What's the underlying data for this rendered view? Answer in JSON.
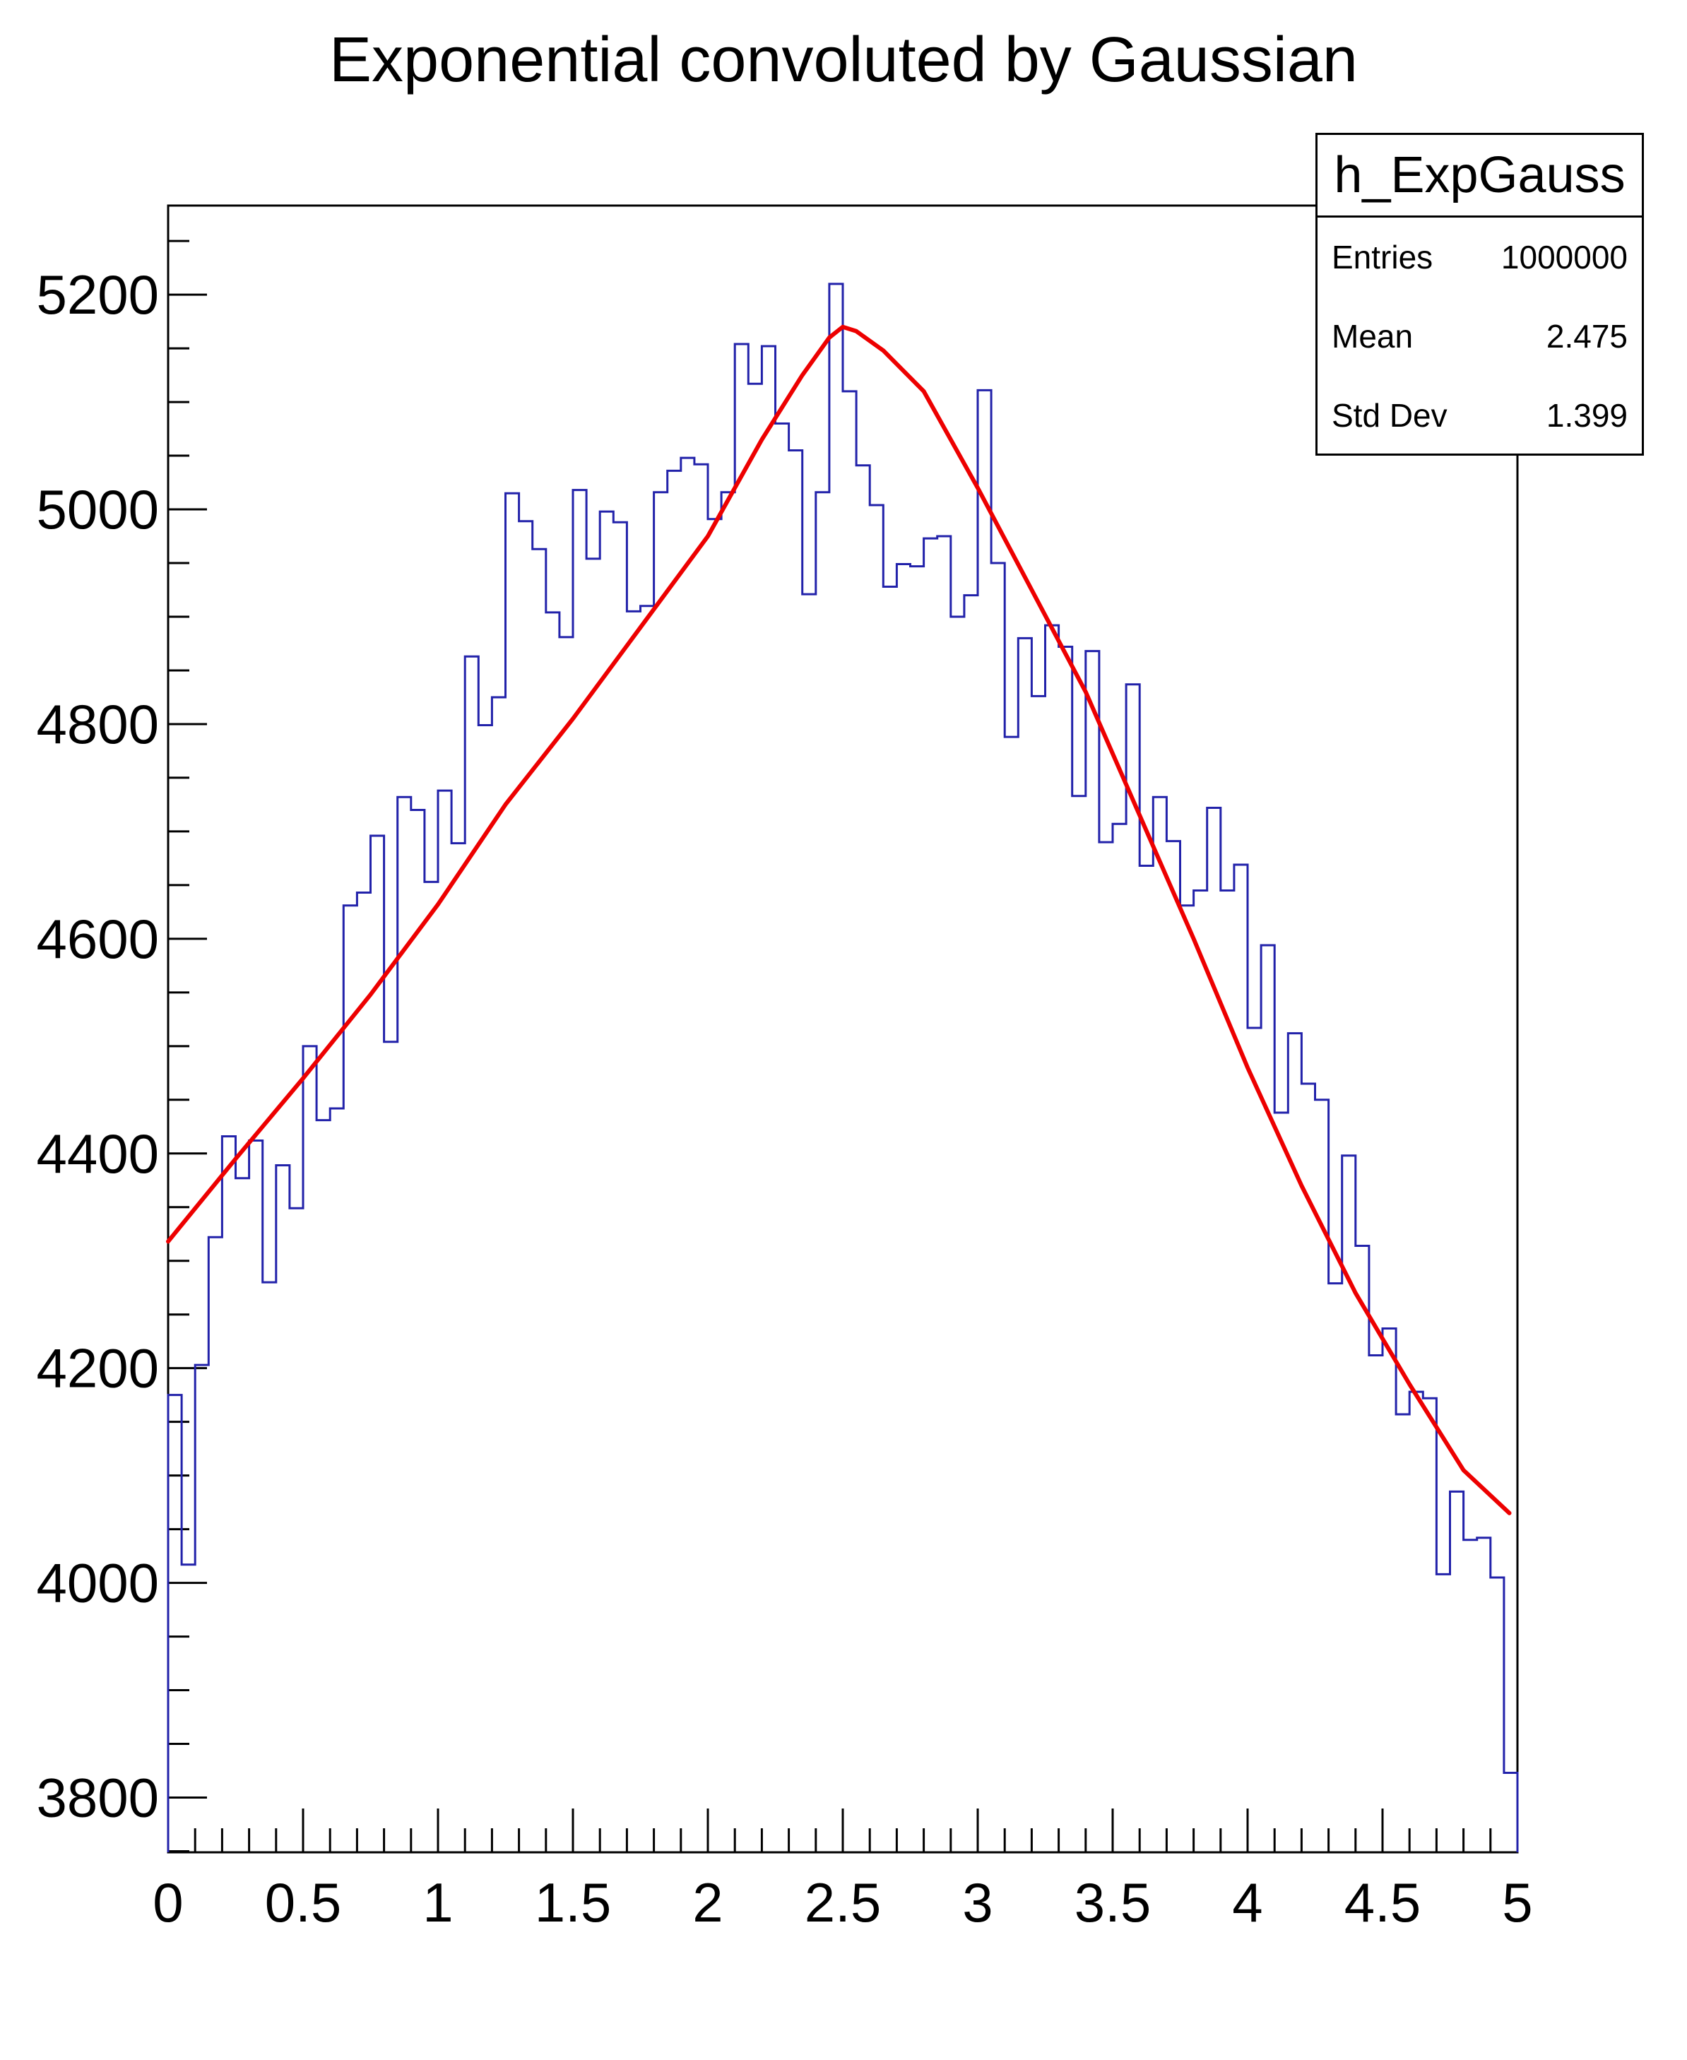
{
  "page": {
    "background": "#ffffff"
  },
  "chart_data": {
    "type": "line",
    "style": "root-step-histogram-with-fit",
    "title": "Exponential convoluted by Gaussian",
    "legend_position": "none",
    "histogram": {
      "name": "h_ExpGauss",
      "color": "#2222aa",
      "bin_start": 0,
      "bin_width": 0.05,
      "n_bins": 100,
      "values": [
        4175,
        4017,
        4203,
        4322,
        4416,
        4377,
        4412,
        4280,
        4389,
        4349,
        4500,
        4431,
        4442,
        4631,
        4643,
        4696,
        4504,
        4732,
        4720,
        4653,
        4738,
        4689,
        4863,
        4799,
        4825,
        5015,
        4989,
        4963,
        4904,
        4881,
        5018,
        4954,
        4998,
        4988,
        4905,
        4910,
        5016,
        5036,
        5048,
        5042,
        4991,
        5016,
        5154,
        5117,
        5152,
        5080,
        5055,
        4921,
        5016,
        5210,
        5110,
        5041,
        5004,
        4928,
        4949,
        4947,
        4973,
        4975,
        4900,
        4920,
        5111,
        4950,
        4788,
        4880,
        4826,
        4892,
        4872,
        4733,
        4868,
        4690,
        4707,
        4837,
        4668,
        4732,
        4691,
        4631,
        4645,
        4722,
        4645,
        4669,
        4517,
        4594,
        4438,
        4512,
        4465,
        4450,
        4279,
        4398,
        4314,
        4212,
        4237,
        4157,
        4178,
        4172,
        4008,
        4085,
        4040,
        4042,
        4005,
        3823
      ]
    },
    "fit_curve": {
      "color": "#ed0000",
      "points": [
        [
          0,
          4318
        ],
        [
          0.25,
          4395
        ],
        [
          0.5,
          4470
        ],
        [
          0.75,
          4548
        ],
        [
          1.0,
          4632
        ],
        [
          1.25,
          4725
        ],
        [
          1.5,
          4805
        ],
        [
          1.75,
          4890
        ],
        [
          2.0,
          4975
        ],
        [
          2.2,
          5065
        ],
        [
          2.35,
          5125
        ],
        [
          2.45,
          5160
        ],
        [
          2.5,
          5170
        ],
        [
          2.55,
          5166
        ],
        [
          2.65,
          5148
        ],
        [
          2.8,
          5110
        ],
        [
          3.0,
          5020
        ],
        [
          3.2,
          4925
        ],
        [
          3.4,
          4830
        ],
        [
          3.6,
          4715
        ],
        [
          3.8,
          4600
        ],
        [
          4.0,
          4480
        ],
        [
          4.2,
          4370
        ],
        [
          4.4,
          4270
        ],
        [
          4.6,
          4185
        ],
        [
          4.8,
          4105
        ],
        [
          4.97,
          4065
        ]
      ]
    },
    "axes": {
      "xlim": [
        0,
        5
      ],
      "ylim": [
        3749,
        5283
      ],
      "x_major_ticks": [
        0,
        0.5,
        1,
        1.5,
        2,
        2.5,
        3,
        3.5,
        4,
        4.5,
        5
      ],
      "x_major_labels": [
        "0",
        "0.5",
        "1",
        "1.5",
        "2",
        "2.5",
        "3",
        "3.5",
        "4",
        "4.5",
        "5"
      ],
      "x_minor_step": 0.1,
      "y_major_ticks": [
        3800,
        4000,
        4200,
        4400,
        4600,
        4800,
        5000,
        5200
      ],
      "y_major_labels": [
        "3800",
        "4000",
        "4200",
        "4400",
        "4600",
        "4800",
        "5000",
        "5200"
      ],
      "y_minor_step": 50,
      "grid": false,
      "xlabel": "",
      "ylabel": ""
    },
    "stats_box": {
      "title": "h_ExpGauss",
      "rows": [
        {
          "label": "Entries",
          "value": "1000000"
        },
        {
          "label": "Mean",
          "value": "2.475"
        },
        {
          "label": "Std Dev",
          "value": "1.399"
        }
      ]
    }
  }
}
